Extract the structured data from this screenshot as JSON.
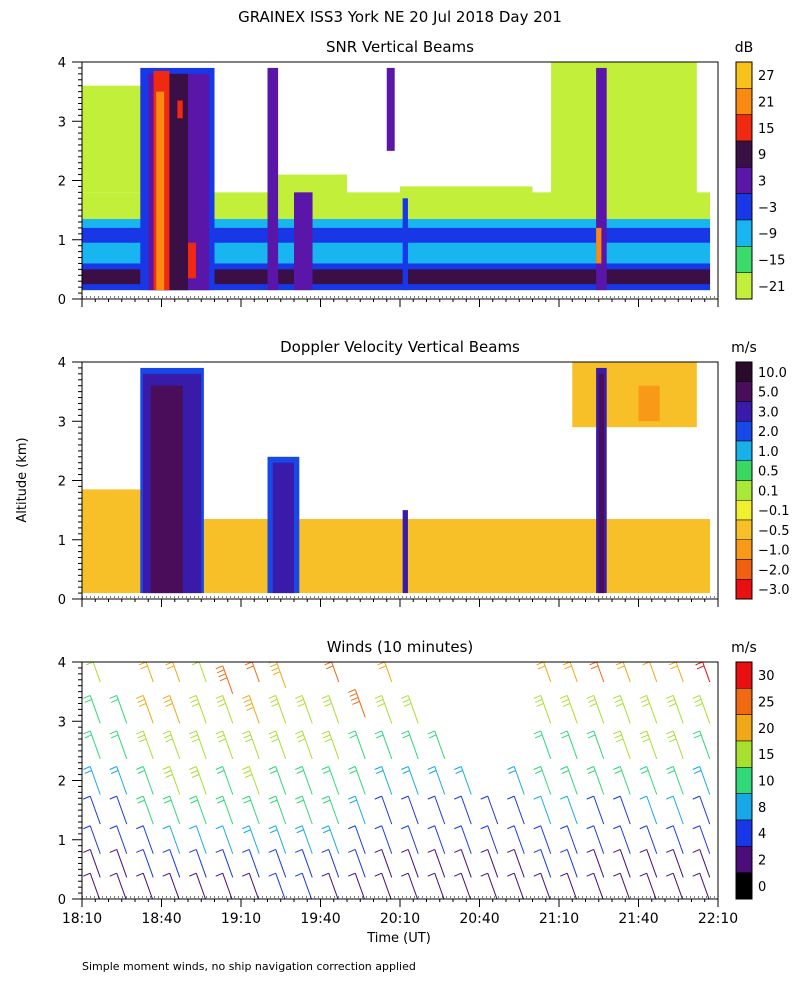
{
  "page": {
    "title": "GRAINEX ISS3 York NE  20 Jul 2018 Day 201",
    "ylabel": "Altitude (km)",
    "xlabel": "Time (UT)",
    "footnote": "Simple moment winds, no ship navigation correction applied"
  },
  "chart_data": [
    {
      "type": "heatmap",
      "title": "SNR Vertical Beams",
      "xlabel": "Time (UT)",
      "ylabel": "Altitude (km)",
      "x_ticks": [
        "18:10",
        "18:40",
        "19:10",
        "19:40",
        "20:10",
        "20:40",
        "21:10",
        "21:40",
        "22:10"
      ],
      "y_ticks": [
        "0",
        "1",
        "2",
        "3",
        "4"
      ],
      "xlim": [
        "18:10",
        "22:10"
      ],
      "ylim": [
        0,
        4
      ],
      "colorbar": {
        "unit": "dB",
        "labels": [
          "27",
          "21",
          "15",
          "9",
          "3",
          "−3",
          "−9",
          "−15",
          "−21"
        ],
        "colors": [
          "#f7c21c",
          "#f98a12",
          "#f02a10",
          "#3a0f45",
          "#5a16a8",
          "#1838e8",
          "#19b5f0",
          "#3ddc6a",
          "#c2f03a"
        ]
      },
      "layers": [
        {
          "name": "low",
          "color": "#c2f03a"
        },
        {
          "name": "mid",
          "color": "#19b5f0"
        },
        {
          "name": "blue",
          "color": "#1838e8"
        },
        {
          "name": "purple",
          "color": "#5a16a8"
        },
        {
          "name": "dark",
          "color": "#3a0f45"
        },
        {
          "name": "red",
          "color": "#f02a10"
        },
        {
          "name": "orange",
          "color": "#f98a12"
        }
      ],
      "bands": [
        {
          "t0": "18:10",
          "t1": "22:07",
          "h0": 0.15,
          "h1": 1.8,
          "layer": "low"
        },
        {
          "t0": "18:10",
          "t1": "22:07",
          "h0": 0.15,
          "h1": 1.35,
          "layer": "mid"
        },
        {
          "t0": "18:10",
          "t1": "22:07",
          "h0": 0.95,
          "h1": 1.2,
          "layer": "blue"
        },
        {
          "t0": "18:10",
          "t1": "22:07",
          "h0": 0.15,
          "h1": 0.6,
          "layer": "blue"
        },
        {
          "t0": "18:10",
          "t1": "22:07",
          "h0": 0.25,
          "h1": 0.5,
          "layer": "dark"
        },
        {
          "t0": "18:10",
          "t1": "19:00",
          "h0": 1.8,
          "h1": 3.6,
          "layer": "low"
        },
        {
          "t0": "19:20",
          "t1": "19:50",
          "h0": 1.4,
          "h1": 2.1,
          "layer": "low"
        },
        {
          "t0": "20:10",
          "t1": "21:00",
          "h0": 1.35,
          "h1": 1.9,
          "layer": "low"
        },
        {
          "t0": "21:07",
          "t1": "22:02",
          "h0": 1.4,
          "h1": 4.0,
          "layer": "low"
        },
        {
          "t0": "18:32",
          "t1": "19:00",
          "h0": 0.15,
          "h1": 3.9,
          "layer": "blue"
        },
        {
          "t0": "18:35",
          "t1": "18:58",
          "h0": 0.15,
          "h1": 3.8,
          "layer": "purple"
        },
        {
          "t0": "18:38",
          "t1": "18:50",
          "h0": 0.15,
          "h1": 3.8,
          "layer": "dark"
        },
        {
          "t0": "18:37",
          "t1": "18:43",
          "h0": 0.15,
          "h1": 3.85,
          "layer": "red"
        },
        {
          "t0": "18:38",
          "t1": "18:41",
          "h0": 0.15,
          "h1": 3.5,
          "layer": "orange"
        },
        {
          "t0": "18:46",
          "t1": "18:48",
          "h0": 3.05,
          "h1": 3.35,
          "layer": "red"
        },
        {
          "t0": "18:50",
          "t1": "18:53",
          "h0": 0.35,
          "h1": 0.95,
          "layer": "red"
        },
        {
          "t0": "19:20",
          "t1": "19:24",
          "h0": 0.15,
          "h1": 3.9,
          "layer": "purple"
        },
        {
          "t0": "19:30",
          "t1": "19:37",
          "h0": 0.15,
          "h1": 1.8,
          "layer": "purple"
        },
        {
          "t0": "20:05",
          "t1": "20:08",
          "h0": 2.5,
          "h1": 3.9,
          "layer": "purple"
        },
        {
          "t0": "20:11",
          "t1": "20:13",
          "h0": 0.15,
          "h1": 1.7,
          "layer": "blue"
        },
        {
          "t0": "21:24",
          "t1": "21:28",
          "h0": 0.15,
          "h1": 3.9,
          "layer": "purple"
        },
        {
          "t0": "21:24",
          "t1": "21:26",
          "h0": 0.6,
          "h1": 1.2,
          "layer": "orange"
        }
      ]
    },
    {
      "type": "heatmap",
      "title": "Doppler Velocity Vertical Beams",
      "xlabel": "Time (UT)",
      "ylabel": "Altitude (km)",
      "x_ticks": [
        "18:10",
        "18:40",
        "19:10",
        "19:40",
        "20:10",
        "20:40",
        "21:10",
        "21:40",
        "22:10"
      ],
      "y_ticks": [
        "0",
        "1",
        "2",
        "3",
        "4"
      ],
      "xlim": [
        "18:10",
        "22:10"
      ],
      "ylim": [
        0,
        4
      ],
      "colorbar": {
        "unit": "m/s",
        "labels": [
          "10.0",
          "5.0",
          "3.0",
          "2.0",
          "1.0",
          "0.5",
          "0.1",
          "−0.1",
          "−0.5",
          "−1.0",
          "−2.0",
          "−3.0"
        ],
        "colors": [
          "#2a0a2a",
          "#4a0d5a",
          "#3a1aa8",
          "#1848e8",
          "#18b0e8",
          "#3ad860",
          "#a8e838",
          "#f0f030",
          "#f8c028",
          "#f89a18",
          "#f06012",
          "#e81010"
        ]
      },
      "layers": [
        {
          "name": "yellow",
          "color": "#f8c028"
        },
        {
          "name": "green",
          "color": "#a8e838"
        },
        {
          "name": "blue",
          "color": "#1848e8"
        },
        {
          "name": "indigo",
          "color": "#3a1aa8"
        },
        {
          "name": "purple",
          "color": "#4a0d5a"
        },
        {
          "name": "orange",
          "color": "#f89a18"
        }
      ],
      "bands": [
        {
          "t0": "18:10",
          "t1": "22:07",
          "h0": 0.1,
          "h1": 1.35,
          "layer": "yellow"
        },
        {
          "t0": "18:10",
          "t1": "18:40",
          "h0": 1.35,
          "h1": 1.85,
          "layer": "yellow"
        },
        {
          "t0": "21:15",
          "t1": "22:02",
          "h0": 2.9,
          "h1": 4.0,
          "layer": "yellow"
        },
        {
          "t0": "21:40",
          "t1": "21:48",
          "h0": 3.0,
          "h1": 3.6,
          "layer": "orange"
        },
        {
          "t0": "18:32",
          "t1": "18:56",
          "h0": 0.1,
          "h1": 3.9,
          "layer": "blue"
        },
        {
          "t0": "18:33",
          "t1": "18:55",
          "h0": 0.1,
          "h1": 3.8,
          "layer": "indigo"
        },
        {
          "t0": "18:36",
          "t1": "18:48",
          "h0": 0.1,
          "h1": 3.6,
          "layer": "purple"
        },
        {
          "t0": "19:20",
          "t1": "19:32",
          "h0": 0.1,
          "h1": 2.4,
          "layer": "blue"
        },
        {
          "t0": "19:22",
          "t1": "19:30",
          "h0": 0.1,
          "h1": 2.3,
          "layer": "indigo"
        },
        {
          "t0": "20:11",
          "t1": "20:13",
          "h0": 0.1,
          "h1": 1.5,
          "layer": "indigo"
        },
        {
          "t0": "21:24",
          "t1": "21:28",
          "h0": 0.1,
          "h1": 3.9,
          "layer": "indigo"
        },
        {
          "t0": "21:25",
          "t1": "21:27",
          "h0": 0.1,
          "h1": 3.8,
          "layer": "purple"
        }
      ]
    },
    {
      "type": "scatter",
      "title": "Winds (10 minutes)",
      "xlabel": "Time (UT)",
      "ylabel": "Altitude (km)",
      "x_ticks": [
        "18:10",
        "18:40",
        "19:10",
        "19:40",
        "20:10",
        "20:40",
        "21:10",
        "21:40",
        "22:10"
      ],
      "y_ticks": [
        "0",
        "1",
        "2",
        "3",
        "4"
      ],
      "xlim": [
        "18:10",
        "22:10"
      ],
      "ylim": [
        0,
        4
      ],
      "colorbar": {
        "unit": "m/s",
        "labels": [
          "30",
          "25",
          "20",
          "15",
          "10",
          "8",
          "4",
          "2",
          "0"
        ],
        "colors": [
          "#e81010",
          "#f06a12",
          "#f0a818",
          "#a8e030",
          "#30d878",
          "#18a8e8",
          "#1838e8",
          "#4a0d7a",
          "#000000"
        ]
      },
      "series": [
        {
          "x": "18:15",
          "altitude_km": [
            0.2,
            0.6,
            1.0,
            1.5,
            2.0,
            2.6,
            3.2,
            3.9
          ],
          "speed_ms": [
            2,
            3,
            5,
            6,
            9,
            12,
            14,
            18
          ]
        },
        {
          "x": "18:25",
          "altitude_km": [
            0.2,
            0.6,
            1.0,
            1.5,
            2.0,
            2.6,
            3.2
          ],
          "speed_ms": [
            2,
            3,
            5,
            6,
            9,
            12,
            14
          ]
        },
        {
          "x": "18:35",
          "altitude_km": [
            0.2,
            0.6,
            1.0,
            1.5,
            2.0,
            2.6,
            3.2,
            3.9
          ],
          "speed_ms": [
            2,
            4,
            7,
            10,
            14,
            17,
            20,
            22
          ]
        },
        {
          "x": "18:45",
          "altitude_km": [
            0.2,
            0.6,
            1.0,
            1.5,
            2.0,
            2.6,
            3.2,
            3.9
          ],
          "speed_ms": [
            3,
            5,
            8,
            12,
            15,
            17,
            20,
            21
          ]
        },
        {
          "x": "18:55",
          "altitude_km": [
            0.2,
            0.6,
            1.0,
            1.5,
            2.0,
            2.6,
            3.2,
            3.9
          ],
          "speed_ms": [
            3,
            5,
            8,
            12,
            15,
            16,
            18,
            19
          ]
        },
        {
          "x": "19:05",
          "altitude_km": [
            0.2,
            0.6,
            1.0,
            1.5,
            2.0,
            2.6,
            3.2,
            3.7
          ],
          "speed_ms": [
            3,
            5,
            8,
            11,
            14,
            16,
            19,
            27
          ]
        },
        {
          "x": "19:15",
          "altitude_km": [
            0.2,
            0.6,
            1.0,
            1.5,
            2.0,
            2.6,
            3.2,
            3.9
          ],
          "speed_ms": [
            3,
            6,
            9,
            12,
            15,
            17,
            21,
            27
          ]
        },
        {
          "x": "19:25",
          "altitude_km": [
            0.2,
            0.6,
            1.0,
            1.5,
            2.0,
            2.6,
            3.2,
            3.8
          ],
          "speed_ms": [
            4,
            6,
            9,
            11,
            14,
            16,
            17,
            22
          ]
        },
        {
          "x": "19:35",
          "altitude_km": [
            0.2,
            0.6,
            1.0,
            1.5,
            2.0,
            2.6,
            3.2
          ],
          "speed_ms": [
            4,
            6,
            9,
            11,
            13,
            16,
            17
          ]
        },
        {
          "x": "19:45",
          "altitude_km": [
            0.2,
            0.6,
            1.0,
            1.5,
            2.0,
            2.6,
            3.2,
            3.9
          ],
          "speed_ms": [
            3,
            6,
            9,
            11,
            13,
            15,
            17,
            26
          ]
        },
        {
          "x": "19:55",
          "altitude_km": [
            0.2,
            0.6,
            1.0,
            1.5,
            2.0,
            2.6,
            3.3
          ],
          "speed_ms": [
            2,
            4,
            7,
            9,
            11,
            13,
            26
          ]
        },
        {
          "x": "20:05",
          "altitude_km": [
            0.2,
            0.6,
            1.0,
            1.5,
            2.0,
            2.6,
            3.2,
            3.9
          ],
          "speed_ms": [
            2,
            3,
            5,
            7,
            9,
            12,
            15,
            22
          ]
        },
        {
          "x": "20:15",
          "altitude_km": [
            0.2,
            0.6,
            1.0,
            1.5,
            2.0,
            2.6,
            3.2
          ],
          "speed_ms": [
            2,
            3,
            5,
            7,
            9,
            12,
            15
          ]
        },
        {
          "x": "20:25",
          "altitude_km": [
            0.2,
            0.6,
            1.0,
            1.5,
            2.0,
            2.6
          ],
          "speed_ms": [
            2,
            3,
            5,
            7,
            9,
            12
          ]
        },
        {
          "x": "20:35",
          "altitude_km": [
            0.2,
            0.6,
            1.0,
            1.5,
            2.0
          ],
          "speed_ms": [
            2,
            3,
            5,
            7,
            9
          ]
        },
        {
          "x": "20:45",
          "altitude_km": [
            0.2,
            0.6,
            1.0,
            1.5
          ],
          "speed_ms": [
            2,
            3,
            5,
            7
          ]
        },
        {
          "x": "20:55",
          "altitude_km": [
            0.2,
            0.6,
            1.0,
            1.5,
            2.0
          ],
          "speed_ms": [
            2,
            3,
            5,
            7,
            9
          ]
        },
        {
          "x": "21:05",
          "altitude_km": [
            0.2,
            0.6,
            1.0,
            1.5,
            2.0,
            2.6,
            3.2,
            3.9
          ],
          "speed_ms": [
            2,
            4,
            6,
            8,
            10,
            13,
            17,
            22
          ]
        },
        {
          "x": "21:15",
          "altitude_km": [
            0.2,
            0.6,
            1.0,
            1.5,
            2.0,
            2.6,
            3.2,
            3.9
          ],
          "speed_ms": [
            2,
            4,
            6,
            8,
            11,
            14,
            17,
            22
          ]
        },
        {
          "x": "21:25",
          "altitude_km": [
            0.2,
            0.6,
            1.0,
            1.5,
            2.0,
            2.6,
            3.2,
            3.9
          ],
          "speed_ms": [
            2,
            3,
            5,
            7,
            10,
            13,
            16,
            25
          ]
        },
        {
          "x": "21:35",
          "altitude_km": [
            0.2,
            0.6,
            1.0,
            1.5,
            2.0,
            2.6,
            3.2,
            3.9
          ],
          "speed_ms": [
            2,
            3,
            5,
            7,
            10,
            15,
            18,
            21
          ]
        },
        {
          "x": "21:45",
          "altitude_km": [
            0.2,
            0.6,
            1.0,
            1.5,
            2.0,
            2.6,
            3.2,
            3.9
          ],
          "speed_ms": [
            2,
            3,
            5,
            8,
            11,
            15,
            18,
            20
          ]
        },
        {
          "x": "21:55",
          "altitude_km": [
            0.2,
            0.6,
            1.0,
            1.5,
            2.0,
            2.6,
            3.2,
            3.9
          ],
          "speed_ms": [
            2,
            3,
            5,
            8,
            11,
            15,
            18,
            24
          ]
        },
        {
          "x": "22:05",
          "altitude_km": [
            0.2,
            0.6,
            1.0,
            1.5,
            2.0,
            2.6,
            3.2,
            3.9
          ],
          "speed_ms": [
            2,
            3,
            5,
            7,
            9,
            13,
            17,
            30
          ]
        }
      ]
    }
  ]
}
